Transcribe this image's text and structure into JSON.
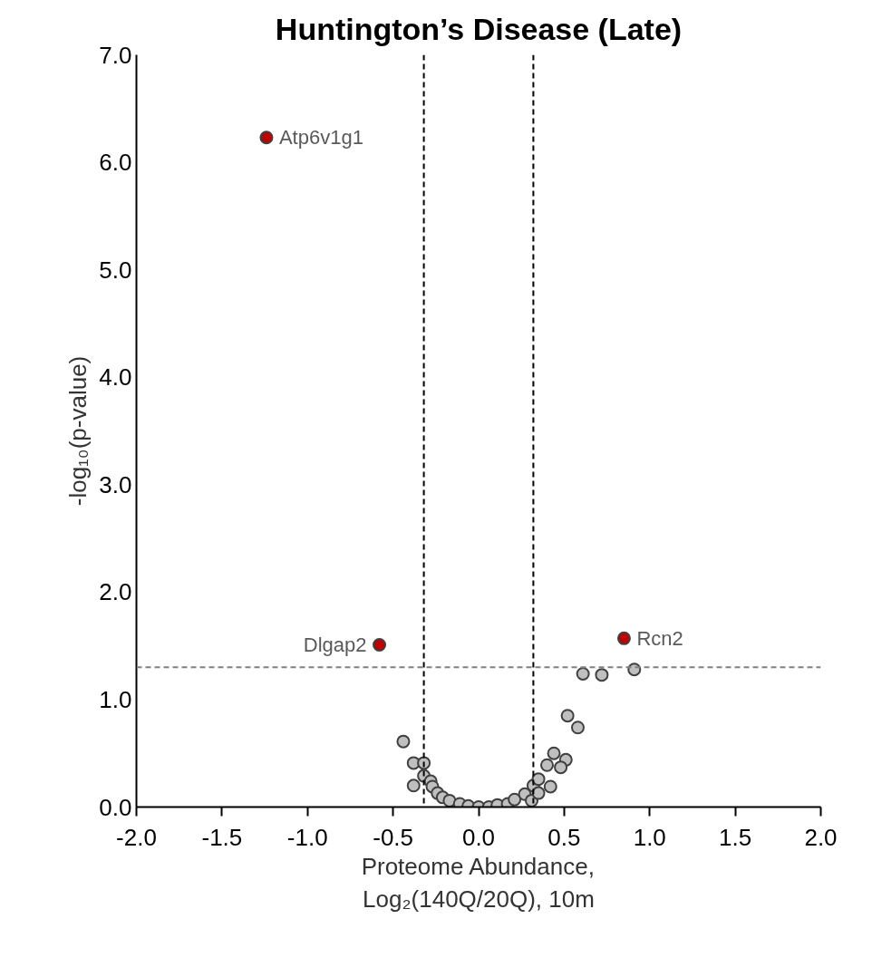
{
  "chart_data": {
    "type": "scatter",
    "title": "Huntington’s Disease (Late)",
    "xlabel": "Proteome Abundance,\nLog₂(140Q/20Q), 10m",
    "ylabel": "-log₁₀(p-value)",
    "xlim": [
      -2,
      2
    ],
    "ylim": [
      0,
      7
    ],
    "xticks": [
      {
        "value": -2,
        "label": "-2.0"
      },
      {
        "value": -1.5,
        "label": "-1.5"
      },
      {
        "value": -1,
        "label": "-1.0"
      },
      {
        "value": -0.5,
        "label": "-0.5"
      },
      {
        "value": 0,
        "label": "0.0"
      },
      {
        "value": 0.5,
        "label": "0.5"
      },
      {
        "value": 1,
        "label": "1.0"
      },
      {
        "value": 1.5,
        "label": "1.5"
      },
      {
        "value": 2,
        "label": "2.0"
      }
    ],
    "yticks": [
      {
        "value": 0,
        "label": "0.0"
      },
      {
        "value": 1,
        "label": "1.0"
      },
      {
        "value": 2,
        "label": "2.0"
      },
      {
        "value": 3,
        "label": "3.0"
      },
      {
        "value": 4,
        "label": "4.0"
      },
      {
        "value": 5,
        "label": "5.0"
      },
      {
        "value": 6,
        "label": "6.0"
      },
      {
        "value": 7,
        "label": "7.0"
      }
    ],
    "grid": false,
    "marker": "circle",
    "series": [
      {
        "color": "#bfbfbf",
        "x": [
          -0.44,
          -0.38,
          -0.32,
          -0.38,
          -0.32,
          -0.28,
          -0.27,
          -0.24,
          -0.21,
          -0.17,
          -0.11,
          -0.06,
          0.0,
          0.06,
          0.11,
          0.17,
          0.21,
          0.27,
          0.31,
          0.32,
          0.35,
          0.35,
          0.4,
          0.44,
          0.51,
          0.48,
          0.42,
          0.52,
          0.58,
          0.61,
          0.72,
          0.91
        ],
        "values": [
          0.61,
          0.41,
          0.41,
          0.2,
          0.29,
          0.24,
          0.19,
          0.13,
          0.09,
          0.06,
          0.03,
          0.01,
          0.0,
          0.0,
          0.02,
          0.03,
          0.07,
          0.12,
          0.06,
          0.2,
          0.26,
          0.13,
          0.39,
          0.5,
          0.44,
          0.37,
          0.19,
          0.85,
          0.74,
          1.24,
          1.23,
          1.28
        ]
      },
      {
        "color": "#c00000",
        "x": [
          -1.24,
          -0.58,
          0.85
        ],
        "values": [
          6.23,
          1.51,
          1.57
        ]
      }
    ],
    "ref_lines": [
      {
        "axis": "x",
        "value": -0.32,
        "color": "#000000",
        "line_style": "dashed"
      },
      {
        "axis": "x",
        "value": 0.32,
        "color": "#000000",
        "line_style": "dashed"
      },
      {
        "axis": "y",
        "value": 1.3,
        "color": "#808080",
        "line_style": "dashed"
      }
    ],
    "annotations": [
      {
        "text": "Atp6v1g1",
        "x": -1.24,
        "y": 6.23
      },
      {
        "text": "Dlgap2",
        "x": -0.58,
        "y": 1.51
      },
      {
        "text": "Rcn2",
        "x": 0.85,
        "y": 1.57
      }
    ]
  }
}
